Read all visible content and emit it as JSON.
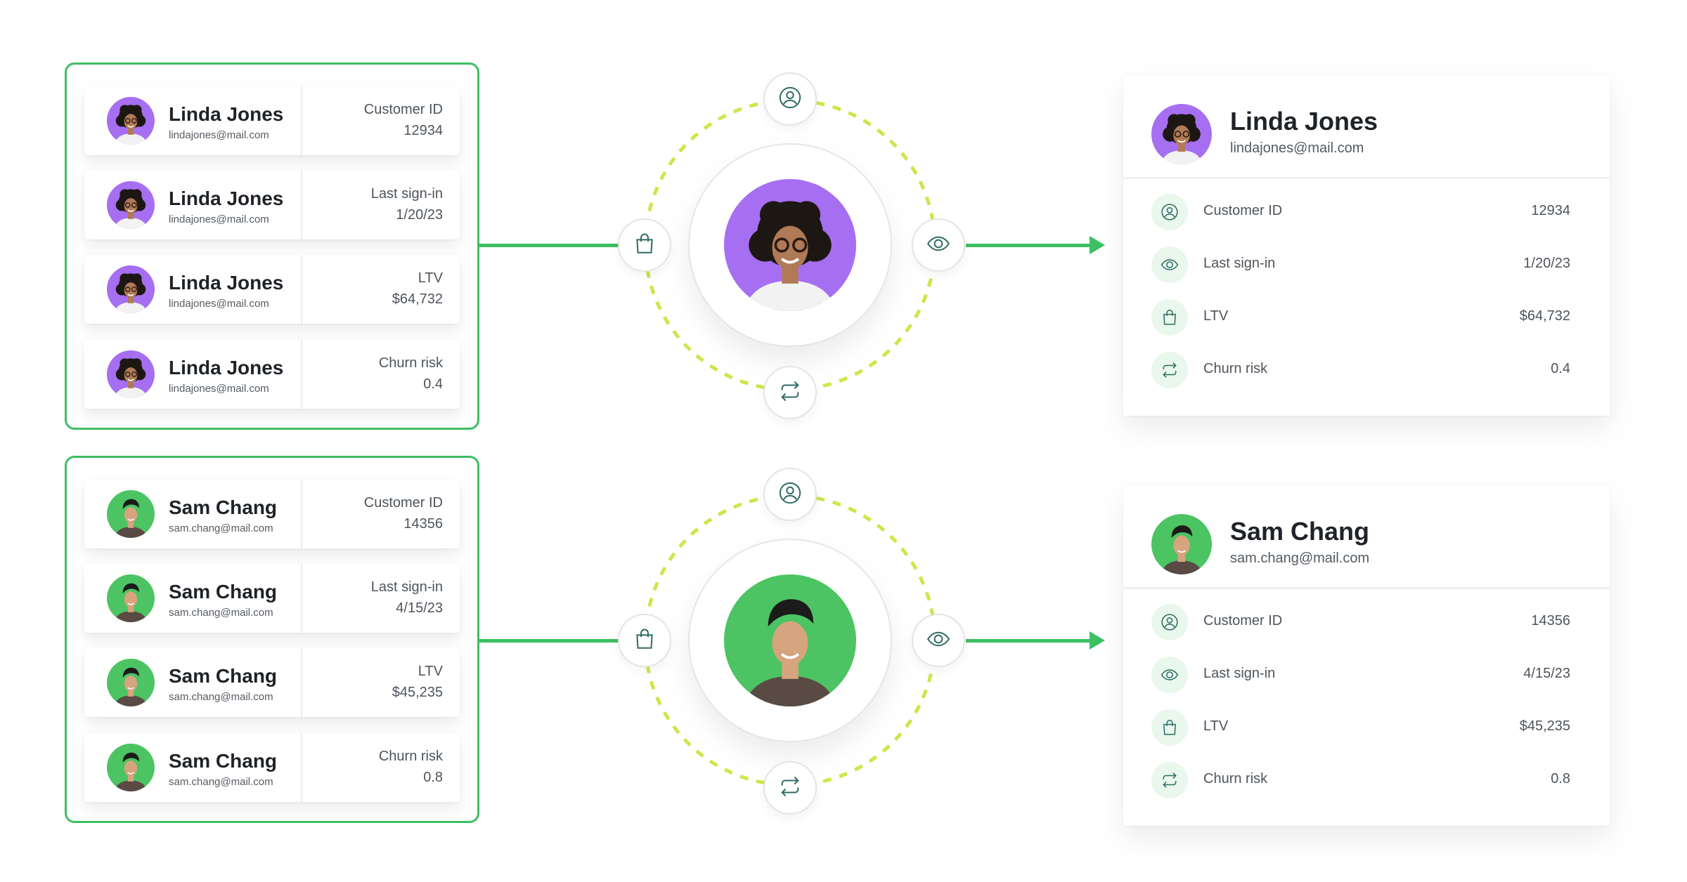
{
  "colors": {
    "accent_green": "#3dbf62",
    "dashed_ring": "#cde64b",
    "icon_stroke": "#2f6b63",
    "icon_bg": "#e9f7ed",
    "linda_avatar_bg": "#a66ff2",
    "sam_avatar_bg": "#4cc463"
  },
  "customers": [
    {
      "name": "Linda Jones",
      "email": "lindajones@mail.com",
      "avatar": {
        "bg": "#a66ff2",
        "hair": "curly-dark",
        "shirt": "#f2f2f2"
      },
      "rows": [
        {
          "label": "Customer ID",
          "value": "12934",
          "icon": "user-circle-icon"
        },
        {
          "label": "Last sign-in",
          "value": "1/20/23",
          "icon": "eye-icon"
        },
        {
          "label": "LTV",
          "value": "$64,732",
          "icon": "shopping-bag-icon"
        },
        {
          "label": "Churn risk",
          "value": "0.4",
          "icon": "refresh-icon"
        }
      ]
    },
    {
      "name": "Sam Chang",
      "email": "sam.chang@mail.com",
      "avatar": {
        "bg": "#4cc463",
        "hair": "short-dark",
        "shirt": "#5a4a44"
      },
      "rows": [
        {
          "label": "Customer ID",
          "value": "14356",
          "icon": "user-circle-icon"
        },
        {
          "label": "Last sign-in",
          "value": "4/15/23",
          "icon": "eye-icon"
        },
        {
          "label": "LTV",
          "value": "$45,235",
          "icon": "shopping-bag-icon"
        },
        {
          "label": "Churn risk",
          "value": "0.8",
          "icon": "refresh-icon"
        }
      ]
    }
  ],
  "orbit_icons": [
    "user-circle-icon",
    "shopping-bag-icon",
    "eye-icon",
    "refresh-icon"
  ]
}
